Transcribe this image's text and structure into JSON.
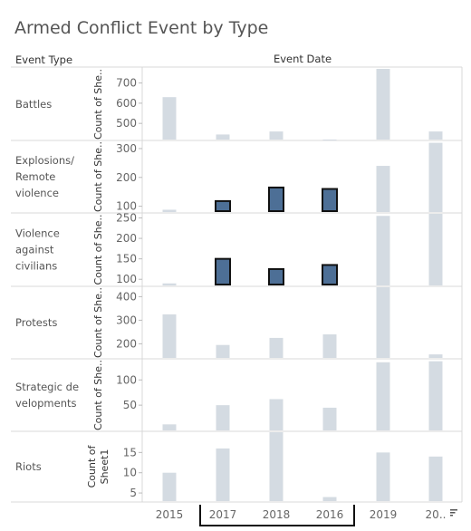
{
  "title": "Armed Conflict Event by Type",
  "header": {
    "row_field": "Event Type",
    "col_field": "Event Date"
  },
  "sort_icon": "sort-descending-icon",
  "colors": {
    "bar": "#d4dbe2",
    "highlight": "#4d6f96",
    "highlight_stroke": "#111111",
    "grid": "#d8d8d8"
  },
  "chart_data": {
    "type": "bar",
    "x": [
      "2015",
      "2017",
      "2018",
      "2016",
      "2019",
      "20.."
    ],
    "highlighted": [
      "2017",
      "2018",
      "2016"
    ],
    "rows": [
      {
        "label_lines": [
          "Battles"
        ],
        "axis_lines": [
          "Count of She.."
        ],
        "ylim": [
          420,
          770
        ],
        "ticks": [
          "500",
          "600",
          "700"
        ],
        "tick_values": [
          500,
          600,
          700
        ],
        "values": [
          630,
          445,
          460,
          415,
          770,
          460
        ],
        "highlight_index": []
      },
      {
        "label_lines": [
          "Explosions/",
          "Remote",
          "violence"
        ],
        "axis_lines": [
          "Count of She.."
        ],
        "ylim": [
          80,
          325
        ],
        "ticks": [
          "100",
          "200",
          "300"
        ],
        "tick_values": [
          100,
          200,
          300
        ],
        "values": [
          88,
          118,
          165,
          160,
          240,
          320
        ],
        "highlight_index": [
          1,
          2,
          3
        ]
      },
      {
        "label_lines": [
          "Violence",
          "against",
          "civilians"
        ],
        "axis_lines": [
          "Count of She.."
        ],
        "ylim": [
          85,
          260
        ],
        "ticks": [
          "100",
          "150",
          "200",
          "250"
        ],
        "tick_values": [
          100,
          150,
          200,
          250
        ],
        "values": [
          90,
          150,
          125,
          135,
          255,
          260
        ],
        "highlight_index": [
          1,
          2,
          3
        ]
      },
      {
        "label_lines": [
          "Protests"
        ],
        "axis_lines": [
          "Count of She.."
        ],
        "ylim": [
          140,
          440
        ],
        "ticks": [
          "200",
          "300",
          "400"
        ],
        "tick_values": [
          200,
          300,
          400
        ],
        "values": [
          325,
          195,
          225,
          240,
          440,
          155
        ],
        "highlight_index": []
      },
      {
        "label_lines": [
          "Strategic de",
          "velopments"
        ],
        "axis_lines": [
          "Count of She.."
        ],
        "ylim": [
          0,
          140
        ],
        "ticks": [
          "50",
          "100"
        ],
        "tick_values": [
          50,
          100
        ],
        "values": [
          12,
          50,
          62,
          45,
          135,
          137
        ],
        "highlight_index": []
      },
      {
        "label_lines": [
          "Riots"
        ],
        "axis_lines": [
          "Count of",
          "Sheet1"
        ],
        "ylim": [
          3,
          20
        ],
        "ticks": [
          "5",
          "10",
          "15"
        ],
        "tick_values": [
          5,
          10,
          15
        ],
        "values": [
          10,
          16,
          20,
          4,
          15,
          14
        ],
        "highlight_index": []
      }
    ]
  }
}
